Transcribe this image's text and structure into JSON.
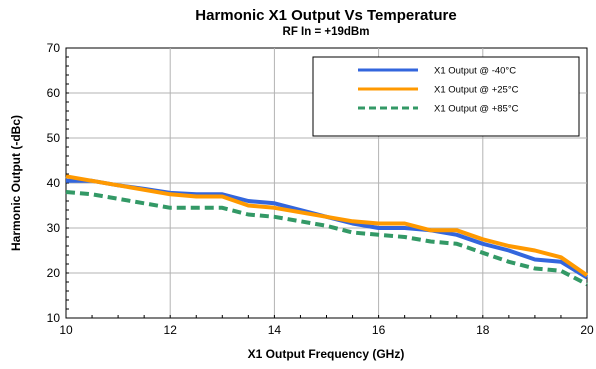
{
  "chart_data": {
    "type": "line",
    "title": "Harmonic X1 Output Vs Temperature",
    "subtitle": "RF In = +19dBm",
    "xlabel": "X1 Output Frequency (GHz)",
    "ylabel": "Harmonic Output (-dBc)",
    "xlim": [
      10,
      20
    ],
    "ylim": [
      10,
      70
    ],
    "xticks": [
      10,
      12,
      14,
      16,
      18,
      20
    ],
    "yticks": [
      10,
      20,
      30,
      40,
      50,
      60,
      70
    ],
    "grid": true,
    "legend_position": "top-right",
    "series": [
      {
        "name": "X1 Output @ -40°C",
        "color": "#3366dd",
        "dash": "solid",
        "x": [
          10,
          10.5,
          11,
          11.5,
          12,
          12.5,
          13,
          13.5,
          14,
          14.5,
          15,
          15.5,
          16,
          16.5,
          17,
          17.5,
          18,
          18.5,
          19,
          19.5,
          20
        ],
        "values": [
          40.5,
          40.5,
          39.5,
          38.7,
          37.8,
          37.5,
          37.5,
          36.0,
          35.5,
          34.0,
          32.5,
          31.0,
          30.0,
          30.0,
          29.5,
          28.5,
          26.5,
          25.0,
          23.0,
          22.5,
          19.0
        ]
      },
      {
        "name": "X1 Output @ +25°C",
        "color": "#ff9900",
        "dash": "solid",
        "x": [
          10,
          10.5,
          11,
          11.5,
          12,
          12.5,
          13,
          13.5,
          14,
          14.5,
          15,
          15.5,
          16,
          16.5,
          17,
          17.5,
          18,
          18.5,
          19,
          19.5,
          20
        ],
        "values": [
          41.5,
          40.5,
          39.5,
          38.5,
          37.5,
          37.0,
          37.0,
          35.0,
          34.5,
          33.5,
          32.5,
          31.5,
          31.0,
          31.0,
          29.5,
          29.5,
          27.5,
          26.0,
          25.0,
          23.5,
          19.5
        ]
      },
      {
        "name": "X1 Output @ +85°C",
        "color": "#339966",
        "dash": "dashed",
        "x": [
          10,
          10.5,
          11,
          11.5,
          12,
          12.5,
          13,
          13.5,
          14,
          14.5,
          15,
          15.5,
          16,
          16.5,
          17,
          17.5,
          18,
          18.5,
          19,
          19.5,
          20
        ],
        "values": [
          38.0,
          37.5,
          36.5,
          35.5,
          34.5,
          34.5,
          34.5,
          33.0,
          32.5,
          31.5,
          30.5,
          29.0,
          28.5,
          28.0,
          27.0,
          26.5,
          24.5,
          22.5,
          21.0,
          20.5,
          17.5
        ]
      }
    ]
  }
}
